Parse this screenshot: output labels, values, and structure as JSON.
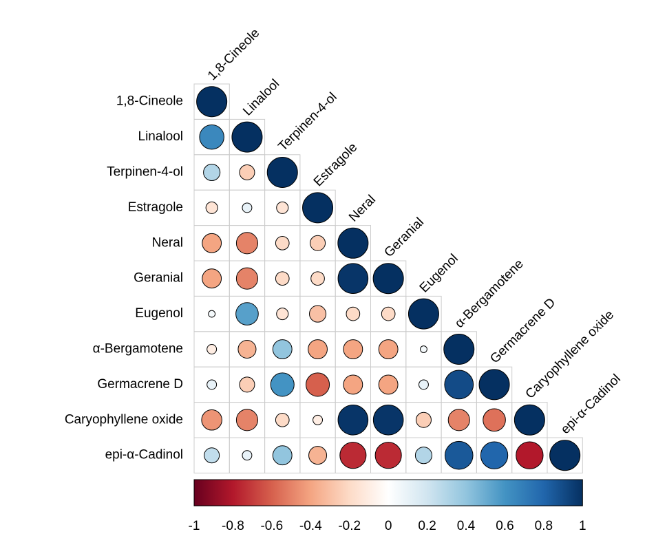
{
  "chart_data": {
    "type": "correlation",
    "variables": [
      "1,8-Cineole",
      "Linalool",
      "Terpinen-4-ol",
      "Estragole",
      "Neral",
      "Geranial",
      "Eugenol",
      "α-Bergamotene",
      "Germacrene D",
      "Caryophyllene oxide",
      "epi-α-Cadinol"
    ],
    "matrix": [
      [
        1
      ],
      [
        0.65,
        1
      ],
      [
        0.3,
        -0.25,
        1
      ],
      [
        -0.15,
        0.1,
        -0.15,
        1
      ],
      [
        -0.4,
        -0.5,
        -0.2,
        -0.25,
        1
      ],
      [
        -0.4,
        -0.5,
        -0.2,
        -0.2,
        0.98,
        1
      ],
      [
        0.05,
        0.55,
        -0.15,
        -0.3,
        -0.2,
        -0.2,
        1
      ],
      [
        -0.1,
        -0.35,
        0.4,
        -0.4,
        -0.4,
        -0.4,
        0.05,
        1
      ],
      [
        0.1,
        -0.25,
        0.6,
        -0.6,
        -0.4,
        -0.4,
        0.1,
        0.9,
        1
      ],
      [
        -0.45,
        -0.5,
        -0.2,
        -0.1,
        0.98,
        0.98,
        -0.25,
        -0.5,
        -0.55,
        1
      ],
      [
        0.25,
        0.1,
        0.4,
        -0.35,
        -0.75,
        -0.75,
        0.3,
        0.85,
        0.8,
        -0.8,
        1
      ]
    ],
    "colormap": [
      "#67001F",
      "#B2182B",
      "#D6604D",
      "#F4A582",
      "#FDDBC7",
      "#FFFFFF",
      "#D1E5F0",
      "#92C5DE",
      "#4393C3",
      "#2166AC",
      "#053061"
    ],
    "clim": [
      -1,
      1
    ],
    "cticks": [
      -1,
      -0.8,
      -0.6,
      -0.4,
      -0.2,
      0,
      0.2,
      0.4,
      0.6,
      0.8,
      1
    ]
  }
}
